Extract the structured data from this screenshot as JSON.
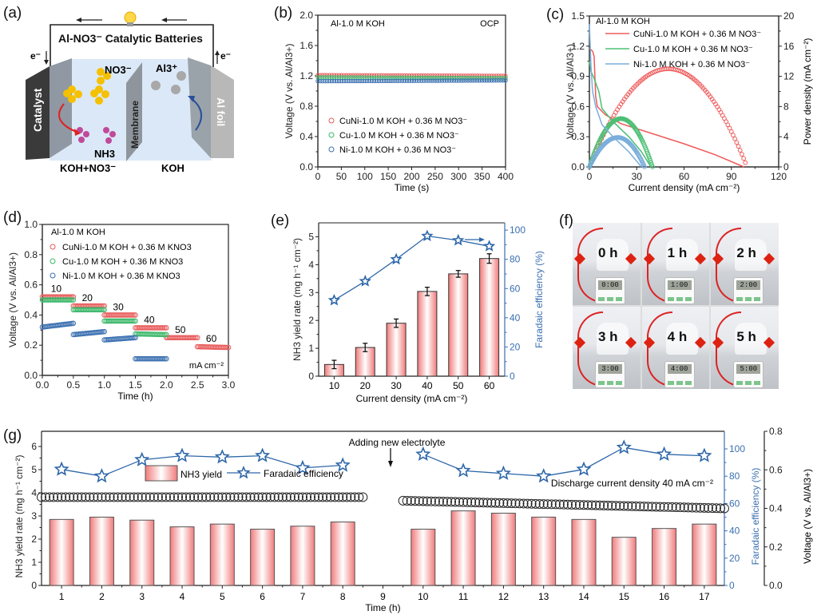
{
  "panel_labels": {
    "a": "(a)",
    "b": "(b)",
    "c": "(c)",
    "d": "(d)",
    "e": "(e)",
    "f": "(f)",
    "g": "(g)"
  },
  "schematic": {
    "title": "Al-NO3⁻ Catalytic Batteries",
    "electron_left": "e⁻",
    "electron_right": "e⁻",
    "catalyst_label": "Catalyst",
    "membrane_label": "Membrane",
    "al_foil_label": "Al foil",
    "nitrate_label": "NO3⁻",
    "al_ion_label": "Al3⁺",
    "ammonia_label": "NH3",
    "left_electrolyte": "KOH+NO3⁻",
    "right_electrolyte": "KOH",
    "colors": {
      "electrolyte": "#dbe8f7",
      "catalyst": "#3a3a3a",
      "al_foil": "#8f959c",
      "nitrate": "#f5c000",
      "ammonia": "#c04a9a",
      "al_ion": "#a8a8a8",
      "red_arrow": "#e02020",
      "blue_arrow": "#2a4f9a"
    }
  },
  "photos": {
    "cells": [
      {
        "time_label": "0 h",
        "timer": "0:00"
      },
      {
        "time_label": "1 h",
        "timer": "1:00"
      },
      {
        "time_label": "2 h",
        "timer": "2:00"
      },
      {
        "time_label": "3 h",
        "timer": "3:00"
      },
      {
        "time_label": "4 h",
        "timer": "4:00"
      },
      {
        "time_label": "5 h",
        "timer": "5:00"
      }
    ]
  },
  "chart_data": [
    {
      "id": "b",
      "type": "scatter",
      "title": "",
      "annotation_left": "Al-1.0 M KOH",
      "annotation_right": "OCP",
      "xlabel": "Time (s)",
      "ylabel": "Voltage (V vs. Al/Al3+)",
      "xlim": [
        0,
        400
      ],
      "ylim": [
        0,
        2.0
      ],
      "xticks": [
        0,
        50,
        100,
        150,
        200,
        250,
        300,
        350,
        400
      ],
      "yticks": [
        0.0,
        0.4,
        0.8,
        1.2,
        1.6,
        2.0
      ],
      "legend_position": "lower-left",
      "series": [
        {
          "name": "CuNi-1.0 M KOH + 0.36 M NO3⁻",
          "color": "#e85a5a",
          "y_start": 1.21,
          "y_end": 1.2
        },
        {
          "name": "Cu-1.0 M KOH + 0.36 M NO3⁻",
          "color": "#3cb86a",
          "y_start": 1.18,
          "y_end": 1.17
        },
        {
          "name": "Ni-1.0 M KOH + 0.36 M NO3⁻",
          "color": "#3a6fb0",
          "y_start": 1.13,
          "y_end": 1.14
        }
      ]
    },
    {
      "id": "c",
      "type": "line",
      "annotation": "Al-1.0 M KOH",
      "xlabel": "Current density (mA cm⁻²)",
      "ylabel": "Voltage (V vs. Al/Al3+)",
      "y2label": "Power density (mA cm⁻²)",
      "xlim": [
        0,
        120
      ],
      "ylim": [
        0,
        1.5
      ],
      "y2lim": [
        0,
        20
      ],
      "xticks": [
        0,
        30,
        60,
        90,
        120
      ],
      "yticks": [
        0.0,
        0.3,
        0.6,
        0.9,
        1.2,
        1.5
      ],
      "y2ticks": [
        0,
        4,
        8,
        12,
        16,
        20
      ],
      "legend_position": "top",
      "series": [
        {
          "name": "CuNi-1.0 M KOH + 0.36 M NO3⁻",
          "color": "#ef5a5a",
          "polarization": [
            [
              0,
              1.18
            ],
            [
              2,
              1.15
            ],
            [
              3,
              1.1
            ],
            [
              4,
              0.7
            ],
            [
              5,
              0.6
            ],
            [
              10,
              0.52
            ],
            [
              20,
              0.43
            ],
            [
              40,
              0.33
            ],
            [
              60,
              0.23
            ],
            [
              80,
              0.12
            ],
            [
              98,
              0.0
            ]
          ],
          "power_peak": {
            "x": 50,
            "y": 13.0
          },
          "power_end": 100
        },
        {
          "name": "Cu-1.0 M KOH + 0.36 M NO3⁻",
          "color": "#4cbf74",
          "polarization": [
            [
              0,
              1.05
            ],
            [
              1,
              0.95
            ],
            [
              3,
              0.88
            ],
            [
              6,
              0.75
            ],
            [
              8,
              0.58
            ],
            [
              15,
              0.45
            ],
            [
              25,
              0.3
            ],
            [
              33,
              0.15
            ],
            [
              39,
              0.0
            ]
          ],
          "power_peak": {
            "x": 20,
            "y": 6.4
          },
          "power_end": 40
        },
        {
          "name": "Ni-1.0 M KOH + 0.36 M NO3⁻",
          "color": "#7aaedc",
          "polarization": [
            [
              0,
              1.42
            ],
            [
              1,
              1.0
            ],
            [
              2,
              0.75
            ],
            [
              4,
              0.6
            ],
            [
              8,
              0.42
            ],
            [
              15,
              0.3
            ],
            [
              25,
              0.15
            ],
            [
              33,
              0.0
            ]
          ],
          "power_peak": {
            "x": 18,
            "y": 3.9
          },
          "power_end": 35
        }
      ]
    },
    {
      "id": "d",
      "type": "scatter",
      "annotation": "Al-1.0 M KOH",
      "xlabel": "Time (h)",
      "ylabel": "Voltage (V vs. Al/Al3+)",
      "xlim": [
        0,
        3.0
      ],
      "ylim": [
        0,
        1.0
      ],
      "xticks": [
        0.0,
        0.5,
        1.0,
        1.5,
        2.0,
        2.5,
        3.0
      ],
      "yticks": [
        0.0,
        0.2,
        0.4,
        0.6,
        0.8,
        1.0
      ],
      "current_labels": [
        "10",
        "20",
        "30",
        "40",
        "50",
        "60"
      ],
      "unit_label": "mA cm⁻²",
      "legend_position": "top-left",
      "series": [
        {
          "name": "CuNi-1.0 M KOH + 0.36 M KNO3",
          "color": "#e85a5a",
          "segments": [
            [
              0,
              0.5,
              0.52,
              0.52
            ],
            [
              0.5,
              1.0,
              0.46,
              0.46
            ],
            [
              1.0,
              1.5,
              0.4,
              0.4
            ],
            [
              1.5,
              2.0,
              0.315,
              0.315
            ],
            [
              2.0,
              2.5,
              0.25,
              0.25
            ],
            [
              2.5,
              3.0,
              0.19,
              0.185
            ]
          ]
        },
        {
          "name": "Cu-1.0 M KOH + 0.36 M KNO3",
          "color": "#3cb86a",
          "segments": [
            [
              0,
              0.5,
              0.5,
              0.5
            ],
            [
              0.5,
              1.0,
              0.435,
              0.435
            ],
            [
              1.0,
              1.5,
              0.36,
              0.36
            ],
            [
              1.5,
              2.0,
              0.275,
              0.27
            ]
          ]
        },
        {
          "name": "Ni-1.0 M KOH + 0.36 M KNO3",
          "color": "#3a6fb0",
          "segments": [
            [
              0,
              0.5,
              0.32,
              0.345
            ],
            [
              0.5,
              1.0,
              0.27,
              0.29
            ],
            [
              1.0,
              1.5,
              0.235,
              0.25
            ],
            [
              1.5,
              2.0,
              0.11,
              0.11
            ]
          ]
        }
      ]
    },
    {
      "id": "e",
      "type": "bar",
      "categories": [
        "10",
        "20",
        "30",
        "40",
        "50",
        "60"
      ],
      "xlabel": "Current density (mA cm⁻²)",
      "ylabel": "NH3 yield rate (mg h⁻¹ cm⁻²)",
      "y2label": "Faradaic efficiency (%)",
      "ylim": [
        0,
        5.5
      ],
      "y2lim": [
        0,
        105
      ],
      "yticks": [
        0,
        1,
        2,
        3,
        4,
        5
      ],
      "y2ticks": [
        0,
        20,
        40,
        60,
        80,
        100
      ],
      "series": [
        {
          "name": "NH3 yield rate",
          "color": "#f07a7a",
          "values": [
            0.42,
            1.03,
            1.9,
            3.04,
            3.67,
            4.22
          ],
          "errors": [
            0.15,
            0.15,
            0.15,
            0.15,
            0.12,
            0.17
          ]
        },
        {
          "name": "Faradaic efficiency",
          "color": "#2e67a8",
          "values": [
            52,
            65,
            80,
            96,
            93,
            89
          ]
        }
      ]
    },
    {
      "id": "g",
      "type": "bar",
      "categories": [
        "1",
        "2",
        "3",
        "4",
        "5",
        "6",
        "7",
        "8",
        "9",
        "10",
        "11",
        "12",
        "13",
        "14",
        "15",
        "16",
        "17"
      ],
      "xlabel": "Time (h)",
      "ylabel": "NH3 yield rate (mg h⁻¹ cm⁻²)",
      "y2label": "Faradaic efficiency (%)",
      "y3label": "Voltage (V vs. Al/Al3+)",
      "ylim": [
        0,
        6.5
      ],
      "y2lim": [
        0,
        110
      ],
      "y3lim": [
        0,
        0.8
      ],
      "yticks": [
        0,
        1,
        2,
        3,
        4,
        5,
        6
      ],
      "y2ticks": [
        0,
        20,
        40,
        60,
        80,
        100
      ],
      "y3ticks": [
        0.0,
        0.2,
        0.4,
        0.6,
        0.8
      ],
      "annotation_arrow": "Adding new electrolyte",
      "annotation_note": "Discharge current density 40 mA cm⁻²",
      "legend_position": "top-center",
      "series": [
        {
          "name": "NH3 yield",
          "color": "#f07a7a",
          "values": [
            2.85,
            2.95,
            2.82,
            2.53,
            2.65,
            2.43,
            2.56,
            2.74,
            null,
            2.43,
            3.22,
            3.12,
            2.95,
            2.85,
            2.08,
            2.46,
            2.65
          ]
        },
        {
          "name": "Faradaic efficiency",
          "color": "#2e67a8",
          "values": [
            85,
            80,
            92,
            95,
            94,
            95,
            86,
            88,
            null,
            96,
            84,
            82,
            80,
            85,
            101,
            96,
            95
          ]
        },
        {
          "name": "Voltage",
          "color": "#222222",
          "segment1": {
            "x_start": 0.5,
            "x_end": 8.5,
            "v": 0.45
          },
          "segment2": {
            "x_start": 9.5,
            "x_end": 17.5,
            "v_start": 0.44,
            "v_end": 0.4
          }
        }
      ]
    }
  ]
}
